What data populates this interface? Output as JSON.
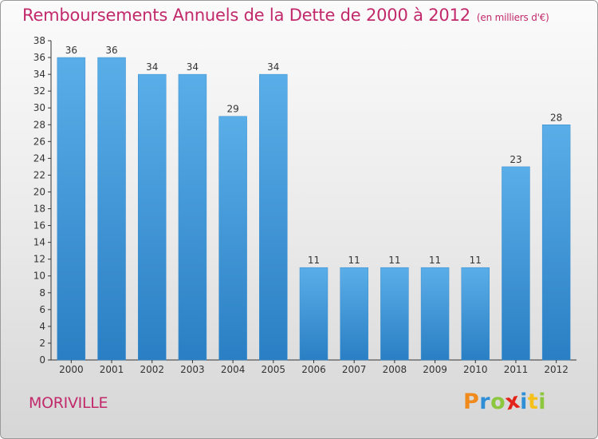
{
  "chart_data": {
    "type": "bar",
    "title": "Remboursements Annuels de la Dette de 2000 à 2012",
    "subtitle": "(en milliers d'€)",
    "categories": [
      "2000",
      "2001",
      "2002",
      "2003",
      "2004",
      "2005",
      "2006",
      "2007",
      "2008",
      "2009",
      "2010",
      "2011",
      "2012"
    ],
    "values": [
      36,
      36,
      34,
      34,
      29,
      34,
      11,
      11,
      11,
      11,
      11,
      23,
      28
    ],
    "ylim": [
      0,
      38
    ],
    "yticks": [
      0,
      2,
      4,
      6,
      8,
      10,
      12,
      14,
      16,
      18,
      20,
      22,
      24,
      26,
      28,
      30,
      32,
      34,
      36,
      38
    ],
    "xlabel": "",
    "ylabel": "",
    "grid": false,
    "bar_color_top": "#5aaee8",
    "bar_color_bottom": "#2a7fc4"
  },
  "commune": "MORIVILLE",
  "logo": {
    "text": "Proxiti",
    "letters": [
      {
        "ch": "P",
        "color": "#f08a1c"
      },
      {
        "ch": "r",
        "color": "#2f8fd6"
      },
      {
        "ch": "o",
        "color": "#8dc63f"
      },
      {
        "ch": "x",
        "color": "#e2231a"
      },
      {
        "ch": "i",
        "color": "#2f8fd6"
      },
      {
        "ch": "t",
        "color": "#f6c01a"
      },
      {
        "ch": "i",
        "color": "#8dc63f"
      }
    ]
  },
  "colors": {
    "title": "#c2296b",
    "axis": "#333333",
    "label": "#333333"
  }
}
